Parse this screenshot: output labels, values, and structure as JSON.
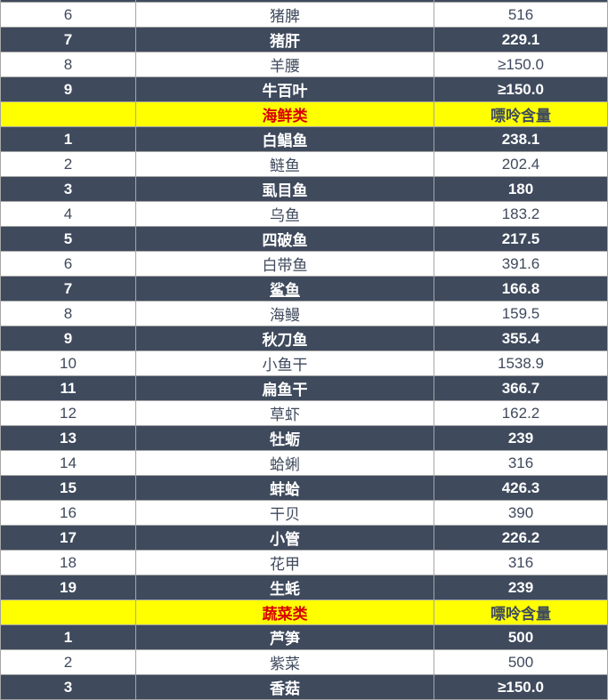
{
  "chart_data": {
    "type": "table",
    "value_column_label": "嘌呤含量",
    "sections": [
      {
        "category": "",
        "rows": [
          {
            "num": "6",
            "name": "猪脾",
            "value": "516"
          },
          {
            "num": "7",
            "name": "猪肝",
            "value": "229.1"
          },
          {
            "num": "8",
            "name": "羊腰",
            "value": "≥150.0"
          },
          {
            "num": "9",
            "name": "牛百叶",
            "value": "≥150.0"
          }
        ]
      },
      {
        "category": "海鲜类",
        "rows": [
          {
            "num": "1",
            "name": "白鲳鱼",
            "value": "238.1"
          },
          {
            "num": "2",
            "name": "鲢鱼",
            "value": "202.4"
          },
          {
            "num": "3",
            "name": "虱目鱼",
            "value": "180"
          },
          {
            "num": "4",
            "name": "乌鱼",
            "value": "183.2"
          },
          {
            "num": "5",
            "name": "四破鱼",
            "value": "217.5"
          },
          {
            "num": "6",
            "name": "白带鱼",
            "value": "391.6"
          },
          {
            "num": "7",
            "name": "鲨鱼",
            "value": "166.8",
            "underline": true
          },
          {
            "num": "8",
            "name": "海鳗",
            "value": "159.5"
          },
          {
            "num": "9",
            "name": "秋刀鱼",
            "value": "355.4"
          },
          {
            "num": "10",
            "name": "小鱼干",
            "value": "1538.9"
          },
          {
            "num": "11",
            "name": "扁鱼干",
            "value": "366.7"
          },
          {
            "num": "12",
            "name": "草虾",
            "value": "162.2"
          },
          {
            "num": "13",
            "name": "牡蛎",
            "value": "239"
          },
          {
            "num": "14",
            "name": "蛤蜊",
            "value": "316"
          },
          {
            "num": "15",
            "name": "蚌蛤",
            "value": "426.3"
          },
          {
            "num": "16",
            "name": "干贝",
            "value": "390"
          },
          {
            "num": "17",
            "name": "小管",
            "value": "226.2"
          },
          {
            "num": "18",
            "name": "花甲",
            "value": "316"
          },
          {
            "num": "19",
            "name": "生蚝",
            "value": "239"
          }
        ]
      },
      {
        "category": "蔬菜类",
        "rows": [
          {
            "num": "1",
            "name": "芦笋",
            "value": "500"
          },
          {
            "num": "2",
            "name": "紫菜",
            "value": "500"
          },
          {
            "num": "3",
            "name": "香菇",
            "value": "≥150.0"
          }
        ]
      }
    ]
  },
  "colors": {
    "dark_row_bg": "#3F4A5D",
    "dark_row_text": "#FFFFFF",
    "light_row_text": "#3F4A5D",
    "section_bg": "#FFFF00",
    "category_text": "#D80000",
    "border": "#A6A6A6"
  }
}
